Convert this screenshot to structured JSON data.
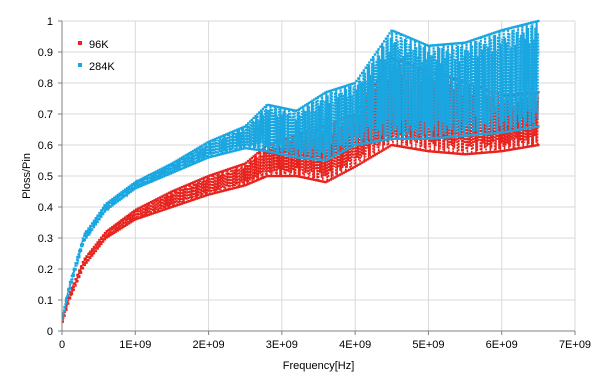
{
  "chart_data": {
    "type": "scatter",
    "title": "",
    "xlabel": "Frequency[Hz]",
    "ylabel": "Ploss/Pin",
    "xlim": [
      0,
      7000000000
    ],
    "ylim": [
      0,
      1
    ],
    "grid": true,
    "legend_position": "top-left",
    "x_ticks": [
      0,
      1000000000,
      2000000000,
      3000000000,
      4000000000,
      5000000000,
      6000000000,
      7000000000
    ],
    "x_tick_labels": [
      "0",
      "1E+09",
      "2E+09",
      "3E+09",
      "4E+09",
      "5E+09",
      "6E+09",
      "7E+09"
    ],
    "y_ticks": [
      0,
      0.1,
      0.2,
      0.3,
      0.4,
      0.5,
      0.6,
      0.7,
      0.8,
      0.9,
      1
    ],
    "y_tick_labels": [
      "0",
      "0.1",
      "0.2",
      "0.3",
      "0.4",
      "0.5",
      "0.6",
      "0.7",
      "0.8",
      "0.9",
      "1"
    ],
    "series": [
      {
        "name": "96K",
        "color": "#e8231e",
        "envelope": {
          "x": [
            10000000,
            100000000,
            300000000,
            600000000,
            1000000000,
            1500000000,
            2000000000,
            2500000000,
            2800000000,
            3200000000,
            3600000000,
            4000000000,
            4500000000,
            5000000000,
            5500000000,
            6000000000,
            6500000000
          ],
          "low": [
            0.03,
            0.1,
            0.21,
            0.3,
            0.36,
            0.4,
            0.44,
            0.47,
            0.5,
            0.5,
            0.48,
            0.53,
            0.6,
            0.58,
            0.57,
            0.58,
            0.6
          ],
          "high": [
            0.04,
            0.12,
            0.23,
            0.32,
            0.39,
            0.45,
            0.5,
            0.54,
            0.6,
            0.63,
            0.66,
            0.7,
            0.88,
            0.84,
            0.8,
            0.76,
            0.77
          ]
        }
      },
      {
        "name": "284K",
        "color": "#1aa7e1",
        "envelope": {
          "x": [
            10000000,
            100000000,
            300000000,
            600000000,
            1000000000,
            1500000000,
            2000000000,
            2500000000,
            2800000000,
            3200000000,
            3600000000,
            4000000000,
            4500000000,
            5000000000,
            5500000000,
            6000000000,
            6500000000
          ],
          "low": [
            0.04,
            0.13,
            0.29,
            0.39,
            0.46,
            0.51,
            0.56,
            0.59,
            0.58,
            0.56,
            0.55,
            0.6,
            0.62,
            0.62,
            0.63,
            0.64,
            0.66
          ],
          "high": [
            0.05,
            0.15,
            0.31,
            0.41,
            0.48,
            0.54,
            0.61,
            0.66,
            0.73,
            0.71,
            0.77,
            0.8,
            0.97,
            0.92,
            0.93,
            0.97,
            1.0
          ]
        }
      }
    ]
  }
}
